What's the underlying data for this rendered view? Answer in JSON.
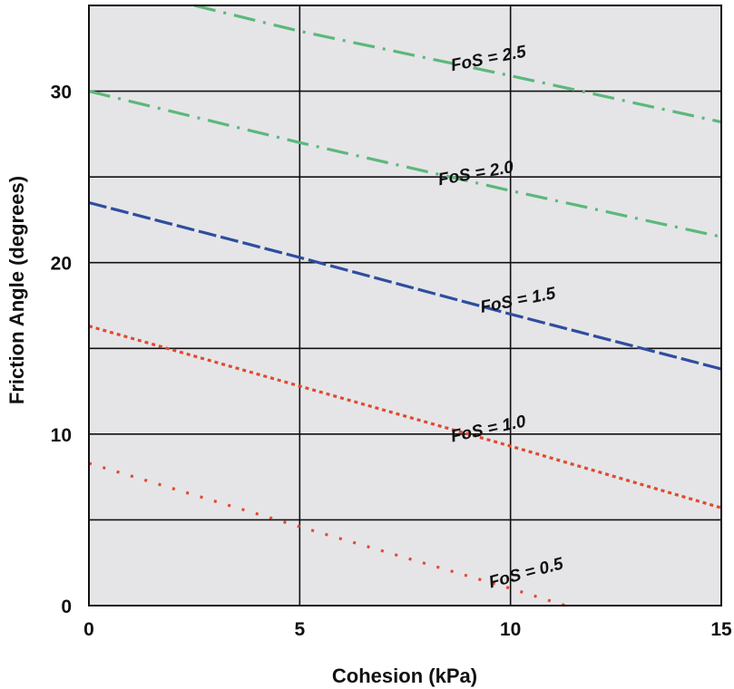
{
  "chart_data": {
    "type": "line",
    "title": "",
    "xlabel": "Cohesion (kPa)",
    "ylabel": "Friction Angle (degrees)",
    "xlim": [
      0,
      15
    ],
    "ylim": [
      0,
      35
    ],
    "x_ticks": [
      0,
      5,
      10,
      15
    ],
    "y_ticks": [
      0,
      10,
      20,
      30
    ],
    "x_gridlines": [
      5,
      10
    ],
    "y_gridlines": [
      5,
      10,
      15,
      20,
      25,
      30
    ],
    "grid": true,
    "background_color": "#e5e5e8",
    "series": [
      {
        "name": "FoS = 2.5",
        "color": "#5cb87a",
        "style": "dash-dot",
        "x": [
          2.5,
          5,
          10,
          15
        ],
        "y": [
          35.0,
          33.5,
          30.9,
          28.2
        ]
      },
      {
        "name": "FoS = 2.0",
        "color": "#5cb87a",
        "style": "dash-dot",
        "x": [
          0,
          5,
          10,
          15
        ],
        "y": [
          30.0,
          27.0,
          24.2,
          21.5
        ]
      },
      {
        "name": "FoS = 1.5",
        "color": "#2f4d9e",
        "style": "dashed",
        "x": [
          0,
          5,
          10,
          15
        ],
        "y": [
          23.5,
          20.3,
          17.0,
          13.8
        ]
      },
      {
        "name": "FoS = 1.0",
        "color": "#e04a2e",
        "style": "dotted",
        "x": [
          0,
          5,
          10,
          15
        ],
        "y": [
          16.3,
          12.8,
          9.3,
          5.7
        ]
      },
      {
        "name": "FoS = 0.5",
        "color": "#e04a2e",
        "style": "sparse-dotted",
        "x": [
          0,
          5,
          10,
          11.3
        ],
        "y": [
          8.3,
          4.6,
          1.0,
          0.0
        ]
      }
    ]
  }
}
